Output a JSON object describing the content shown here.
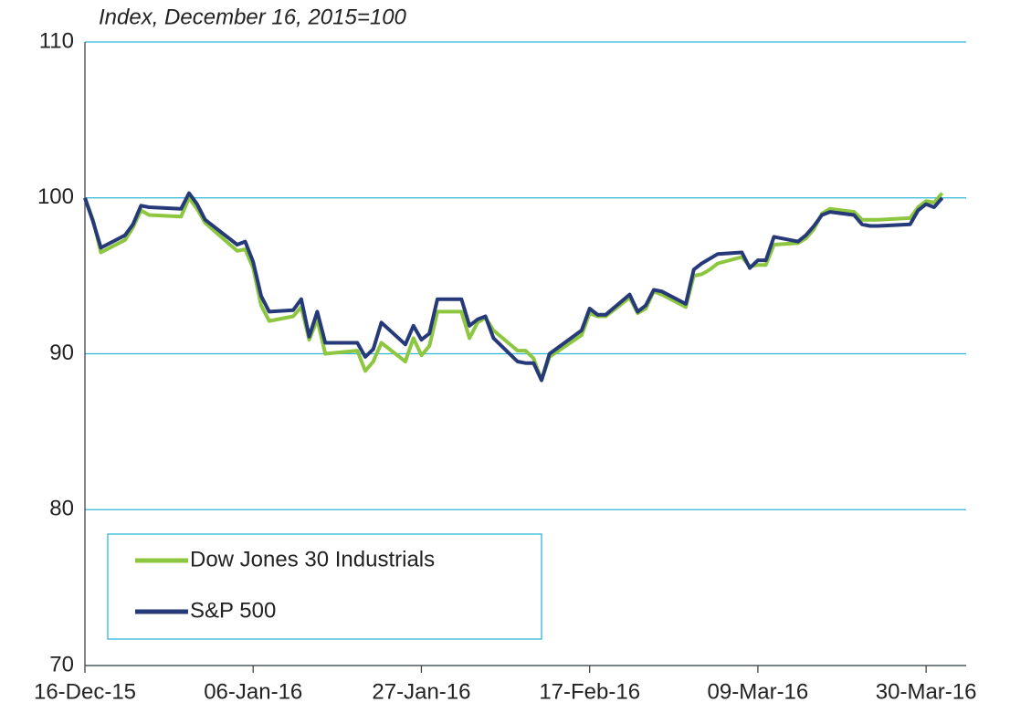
{
  "chart_data": {
    "type": "line",
    "subtitle": "Index, December 16, 2015=100",
    "x": [
      "2015-12-16",
      "2015-12-17",
      "2015-12-18",
      "2015-12-21",
      "2015-12-22",
      "2015-12-23",
      "2015-12-24",
      "2015-12-28",
      "2015-12-29",
      "2015-12-30",
      "2015-12-31",
      "2016-01-04",
      "2016-01-05",
      "2016-01-06",
      "2016-01-07",
      "2016-01-08",
      "2016-01-11",
      "2016-01-12",
      "2016-01-13",
      "2016-01-14",
      "2016-01-15",
      "2016-01-19",
      "2016-01-20",
      "2016-01-21",
      "2016-01-22",
      "2016-01-25",
      "2016-01-26",
      "2016-01-27",
      "2016-01-28",
      "2016-01-29",
      "2016-02-01",
      "2016-02-02",
      "2016-02-03",
      "2016-02-04",
      "2016-02-05",
      "2016-02-08",
      "2016-02-09",
      "2016-02-10",
      "2016-02-11",
      "2016-02-12",
      "2016-02-16",
      "2016-02-17",
      "2016-02-18",
      "2016-02-19",
      "2016-02-22",
      "2016-02-23",
      "2016-02-24",
      "2016-02-25",
      "2016-02-26",
      "2016-02-29",
      "2016-03-01",
      "2016-03-02",
      "2016-03-03",
      "2016-03-04",
      "2016-03-07",
      "2016-03-08",
      "2016-03-09",
      "2016-03-10",
      "2016-03-11",
      "2016-03-14",
      "2016-03-15",
      "2016-03-16",
      "2016-03-17",
      "2016-03-18",
      "2016-03-21",
      "2016-03-22",
      "2016-03-23",
      "2016-03-24",
      "2016-03-28",
      "2016-03-29",
      "2016-03-30",
      "2016-03-31",
      "2016-04-01"
    ],
    "series": [
      {
        "name": "Dow Jones 30 Industrials",
        "color": "#8dc63f",
        "values": [
          100,
          98.6,
          96.5,
          97.3,
          98.1,
          99.2,
          98.9,
          98.8,
          100.0,
          99.3,
          98.4,
          96.6,
          96.7,
          95.5,
          93.1,
          92.1,
          92.4,
          93.0,
          90.9,
          92.2,
          90.0,
          90.2,
          88.9,
          89.5,
          90.7,
          89.5,
          91.0,
          89.9,
          90.5,
          92.7,
          92.7,
          91.0,
          92.0,
          92.3,
          91.5,
          90.2,
          90.2,
          89.7,
          88.3,
          89.8,
          91.2,
          92.6,
          92.4,
          92.4,
          93.6,
          92.6,
          92.9,
          94.0,
          93.8,
          93.0,
          95.0,
          95.1,
          95.4,
          95.8,
          96.2,
          95.6,
          95.7,
          95.7,
          97.0,
          97.1,
          97.4,
          98.0,
          99.0,
          99.3,
          99.1,
          98.6,
          98.6,
          98.6,
          98.7,
          99.4,
          99.8,
          99.7,
          100.3
        ]
      },
      {
        "name": "S&P 500",
        "color": "#263a7a",
        "values": [
          100,
          98.5,
          96.8,
          97.6,
          98.3,
          99.5,
          99.4,
          99.3,
          100.3,
          99.6,
          98.6,
          97.0,
          97.2,
          95.9,
          93.7,
          92.7,
          92.8,
          93.5,
          91.1,
          92.7,
          90.7,
          90.7,
          89.8,
          90.3,
          92.0,
          90.6,
          91.8,
          90.9,
          91.3,
          93.5,
          93.5,
          91.8,
          92.2,
          92.4,
          91.0,
          89.5,
          89.4,
          89.4,
          88.3,
          90.0,
          91.5,
          92.9,
          92.5,
          92.5,
          93.8,
          92.7,
          93.1,
          94.1,
          94.0,
          93.2,
          95.4,
          95.8,
          96.1,
          96.4,
          96.5,
          95.5,
          96.0,
          96.0,
          97.5,
          97.2,
          97.6,
          98.2,
          98.9,
          99.1,
          98.9,
          98.3,
          98.2,
          98.2,
          98.3,
          99.2,
          99.6,
          99.4,
          100.0
        ]
      }
    ],
    "xlim": [
      "2015-12-16",
      "2016-04-04"
    ],
    "xticks": [
      {
        "value": "2015-12-16",
        "label": "16-Dec-15"
      },
      {
        "value": "2016-01-06",
        "label": "06-Jan-16"
      },
      {
        "value": "2016-01-27",
        "label": "27-Jan-16"
      },
      {
        "value": "2016-02-17",
        "label": "17-Feb-16"
      },
      {
        "value": "2016-03-09",
        "label": "09-Mar-16"
      },
      {
        "value": "2016-03-30",
        "label": "30-Mar-16"
      }
    ],
    "ylim": [
      70,
      110
    ],
    "yticks": [
      70,
      80,
      90,
      100,
      110
    ],
    "grid": true,
    "legend": "lower left"
  }
}
